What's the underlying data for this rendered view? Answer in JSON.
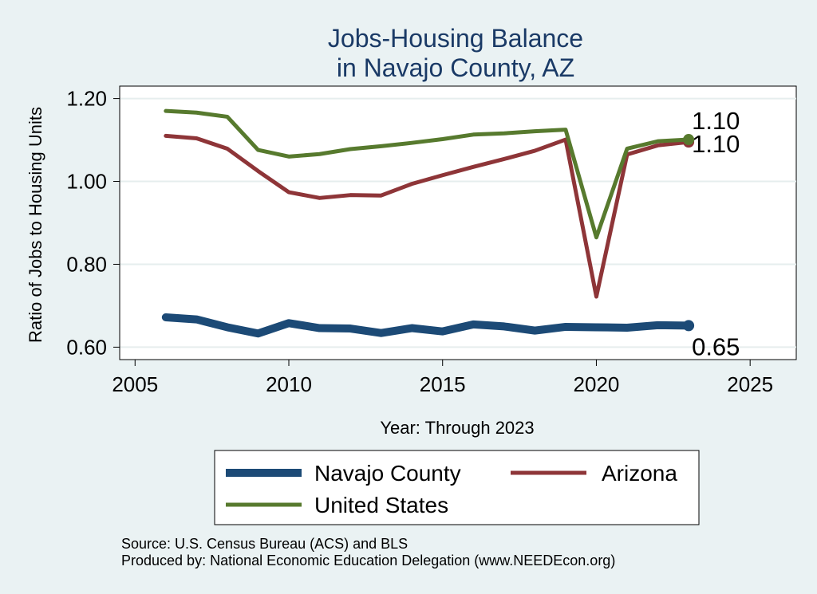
{
  "chart_data": {
    "type": "line",
    "title": [
      "Jobs-Housing Balance",
      "in Navajo County, AZ"
    ],
    "xlabel": "Year: Through 2023",
    "ylabel": "Ratio of Jobs to Housing Units",
    "xlim": [
      2004.5,
      2026.5
    ],
    "ylim": [
      0.57,
      1.23
    ],
    "x_ticks": [
      2005,
      2010,
      2015,
      2020,
      2025
    ],
    "y_ticks": [
      0.6,
      0.8,
      1.0,
      1.2
    ],
    "y_tick_labels": [
      "0.60",
      "0.80",
      "1.00",
      "1.20"
    ],
    "x": [
      2006,
      2007,
      2008,
      2009,
      2010,
      2011,
      2012,
      2013,
      2014,
      2015,
      2016,
      2017,
      2018,
      2019,
      2020,
      2021,
      2022,
      2023
    ],
    "series": [
      {
        "name": "Navajo County",
        "color": "#1c4a76",
        "values": [
          0.672,
          0.667,
          0.648,
          0.633,
          0.658,
          0.646,
          0.645,
          0.634,
          0.646,
          0.638,
          0.655,
          0.65,
          0.64,
          0.649,
          0.648,
          0.647,
          0.653,
          0.652
        ],
        "end_label": "0.65"
      },
      {
        "name": "Arizona",
        "color": "#8e3538",
        "values": [
          1.11,
          1.104,
          1.079,
          1.025,
          0.974,
          0.96,
          0.967,
          0.966,
          0.994,
          1.015,
          1.035,
          1.054,
          1.074,
          1.101,
          0.722,
          1.065,
          1.087,
          1.095
        ],
        "end_label": "1.10"
      },
      {
        "name": "United States",
        "color": "#577a2e",
        "values": [
          1.17,
          1.166,
          1.156,
          1.076,
          1.06,
          1.066,
          1.078,
          1.085,
          1.093,
          1.102,
          1.113,
          1.116,
          1.121,
          1.125,
          0.865,
          1.079,
          1.097,
          1.101
        ],
        "end_label": "1.10"
      }
    ],
    "legend": {
      "position": "bottom",
      "entries": [
        "Navajo County",
        "Arizona",
        "United States"
      ]
    }
  },
  "source": {
    "line1": "Source: U.S. Census Bureau (ACS) and BLS",
    "line2": "Produced by: National Economic Education Delegation (www.NEEDEcon.org)"
  }
}
